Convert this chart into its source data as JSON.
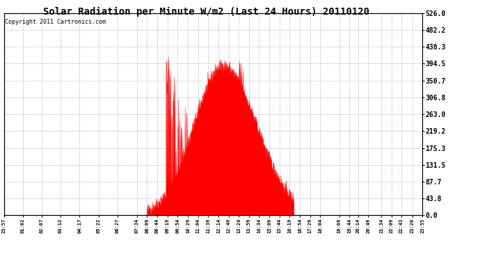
{
  "title": "Solar Radiation per Minute W/m2 (Last 24 Hours) 20110120",
  "copyright": "Copyright 2011 Cartronics.com",
  "background_color": "#ffffff",
  "plot_bg_color": "#ffffff",
  "fill_color": "#ff0000",
  "line_color": "#ff0000",
  "grid_color": "#aaaaaa",
  "yticks": [
    0.0,
    43.8,
    87.7,
    131.5,
    175.3,
    219.2,
    263.0,
    306.8,
    350.7,
    394.5,
    438.3,
    482.2,
    526.0
  ],
  "ytick_labels": [
    "0.0",
    "43.8",
    "87.7",
    "131.5",
    "175.3",
    "219.2",
    "263.0",
    "306.8",
    "350.7",
    "394.5",
    "438.3",
    "482.2",
    "526.0"
  ],
  "ylim": [
    0.0,
    526.0
  ],
  "x_labels": [
    "23:57",
    "01:02",
    "02:07",
    "03:12",
    "04:17",
    "05:22",
    "06:27",
    "07:34",
    "08:09",
    "08:44",
    "09:19",
    "09:54",
    "10:29",
    "11:04",
    "11:39",
    "12:14",
    "12:49",
    "13:24",
    "13:59",
    "14:34",
    "15:09",
    "15:44",
    "16:19",
    "16:54",
    "17:29",
    "18:04",
    "19:09",
    "19:44",
    "20:14",
    "20:49",
    "21:34",
    "22:09",
    "22:43",
    "23:20",
    "23:55"
  ],
  "border_color": "#000000",
  "title_fontsize": 10,
  "ylabel_fontsize": 7,
  "xlabel_fontsize": 5,
  "copyright_fontsize": 6
}
